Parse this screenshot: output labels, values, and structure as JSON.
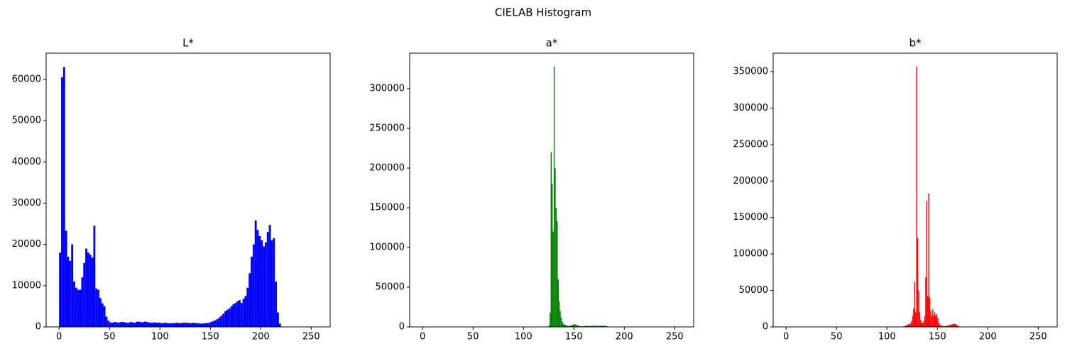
{
  "title": "CIELAB Histogram",
  "chart_data": [
    {
      "type": "histogram",
      "title": "L*",
      "color": "#0000ff",
      "bins": [
        0,
        2,
        4,
        6,
        8,
        10,
        12,
        14,
        16,
        18,
        20,
        22,
        24,
        26,
        28,
        30,
        32,
        34,
        36,
        38,
        40,
        42,
        44,
        46,
        48,
        50,
        52,
        54,
        56,
        58,
        60,
        62,
        64,
        66,
        68,
        70,
        72,
        74,
        76,
        78,
        80,
        82,
        84,
        86,
        88,
        90,
        92,
        94,
        96,
        98,
        100,
        102,
        104,
        106,
        108,
        110,
        112,
        114,
        116,
        118,
        120,
        122,
        124,
        126,
        128,
        130,
        132,
        134,
        136,
        138,
        140,
        142,
        144,
        146,
        148,
        150,
        152,
        154,
        156,
        158,
        160,
        162,
        164,
        166,
        168,
        170,
        172,
        174,
        176,
        178,
        180,
        182,
        184,
        186,
        188,
        190,
        192,
        194,
        196,
        198,
        200,
        202,
        204,
        206,
        208,
        210,
        212,
        214,
        216,
        218,
        220,
        222
      ],
      "counts": [
        18000,
        60500,
        63000,
        23300,
        17000,
        16000,
        20000,
        11000,
        9500,
        9000,
        9000,
        12000,
        15500,
        19000,
        18000,
        17500,
        16800,
        24500,
        9300,
        9000,
        7000,
        5700,
        5000,
        2500,
        1500,
        1100,
        1000,
        1200,
        1100,
        1000,
        1150,
        1200,
        1100,
        1050,
        1000,
        1200,
        1100,
        1000,
        1250,
        1300,
        1200,
        1100,
        1300,
        1200,
        1100,
        1000,
        1050,
        1100,
        1000,
        1050,
        950,
        900,
        1000,
        950,
        900,
        850,
        900,
        950,
        1000,
        950,
        900,
        1000,
        1050,
        1000,
        950,
        900,
        1000,
        950,
        900,
        850,
        800,
        850,
        900,
        950,
        1000,
        1200,
        1400,
        1600,
        1900,
        2300,
        2700,
        3200,
        3800,
        4200,
        4500,
        5000,
        5500,
        5800,
        6200,
        6500,
        5800,
        6800,
        7500,
        9500,
        13000,
        17000,
        20000,
        25800,
        23500,
        22000,
        21000,
        19500,
        20500,
        23000,
        24700,
        21000,
        21500,
        11000,
        3500,
        800,
        0
      ],
      "xlim": [
        -12.8,
        268.8
      ],
      "ylim": [
        0,
        66360
      ],
      "xticks": [
        0,
        50,
        100,
        150,
        200,
        250
      ],
      "yticks": [
        0,
        10000,
        20000,
        30000,
        40000,
        50000,
        60000
      ]
    },
    {
      "type": "histogram",
      "title": "a*",
      "color": "#008000",
      "bins": [
        124,
        125,
        126,
        127,
        128,
        129,
        130,
        131,
        132,
        133,
        134,
        135,
        136,
        137,
        138,
        139,
        140,
        141,
        142,
        143,
        144,
        145,
        146,
        147,
        148,
        149,
        150,
        151,
        152,
        153,
        154,
        155,
        156,
        157,
        158,
        159,
        160,
        161,
        162,
        163,
        164,
        165,
        166,
        167,
        168,
        169,
        170,
        171,
        172,
        173,
        174,
        175,
        176,
        177,
        178,
        179,
        180,
        181,
        182,
        183,
        184,
        185,
        186
      ],
      "counts": [
        500,
        2000,
        18000,
        220000,
        180000,
        120000,
        328000,
        200000,
        150000,
        133000,
        60000,
        32000,
        20000,
        12000,
        7000,
        4000,
        3000,
        2500,
        2000,
        1500,
        1200,
        1000,
        1500,
        2000,
        2500,
        3000,
        3500,
        3000,
        2500,
        2000,
        1500,
        1200,
        1000,
        800,
        800,
        900,
        1000,
        1200,
        1300,
        1200,
        1000,
        1100,
        1200,
        1300,
        1500,
        1300,
        1200,
        1400,
        1500,
        1300,
        1200,
        1400,
        1600,
        1400,
        1200,
        1500,
        1300,
        1400,
        1000,
        600,
        300,
        200
      ],
      "xlim": [
        -12.8,
        268.8
      ],
      "ylim": [
        0,
        344600
      ],
      "xticks": [
        0,
        50,
        100,
        150,
        200,
        250
      ],
      "yticks": [
        0,
        50000,
        100000,
        150000,
        200000,
        250000,
        300000
      ]
    },
    {
      "type": "histogram",
      "title": "b*",
      "color": "#ff0000",
      "bins": [
        114,
        115,
        116,
        117,
        118,
        119,
        120,
        121,
        122,
        123,
        124,
        125,
        126,
        127,
        128,
        129,
        130,
        131,
        132,
        133,
        134,
        135,
        136,
        137,
        138,
        139,
        140,
        141,
        142,
        143,
        144,
        145,
        146,
        147,
        148,
        149,
        150,
        151,
        152,
        153,
        154,
        155,
        156,
        157,
        158,
        159,
        160,
        161,
        162,
        163,
        164,
        165,
        166,
        167,
        168,
        169,
        170,
        171,
        172
      ],
      "counts": [
        300,
        500,
        800,
        1000,
        1500,
        2000,
        3000,
        4000,
        3000,
        5000,
        8000,
        15000,
        25000,
        62000,
        20000,
        357000,
        122000,
        50000,
        20000,
        10000,
        6000,
        5000,
        8000,
        15000,
        68000,
        173000,
        42000,
        183000,
        40000,
        22000,
        15000,
        24000,
        16000,
        20000,
        15000,
        18000,
        12000,
        6000,
        3000,
        2000,
        1500,
        1200,
        1000,
        1000,
        1200,
        1500,
        1800,
        2000,
        2500,
        3000,
        3500,
        4000,
        4500,
        4000,
        3500,
        2500,
        1500,
        800
      ],
      "xlim": [
        -12.8,
        268.8
      ],
      "ylim": [
        0,
        375300
      ],
      "xticks": [
        0,
        50,
        100,
        150,
        200,
        250
      ],
      "yticks": [
        0,
        50000,
        100000,
        150000,
        200000,
        250000,
        300000,
        350000
      ]
    }
  ]
}
